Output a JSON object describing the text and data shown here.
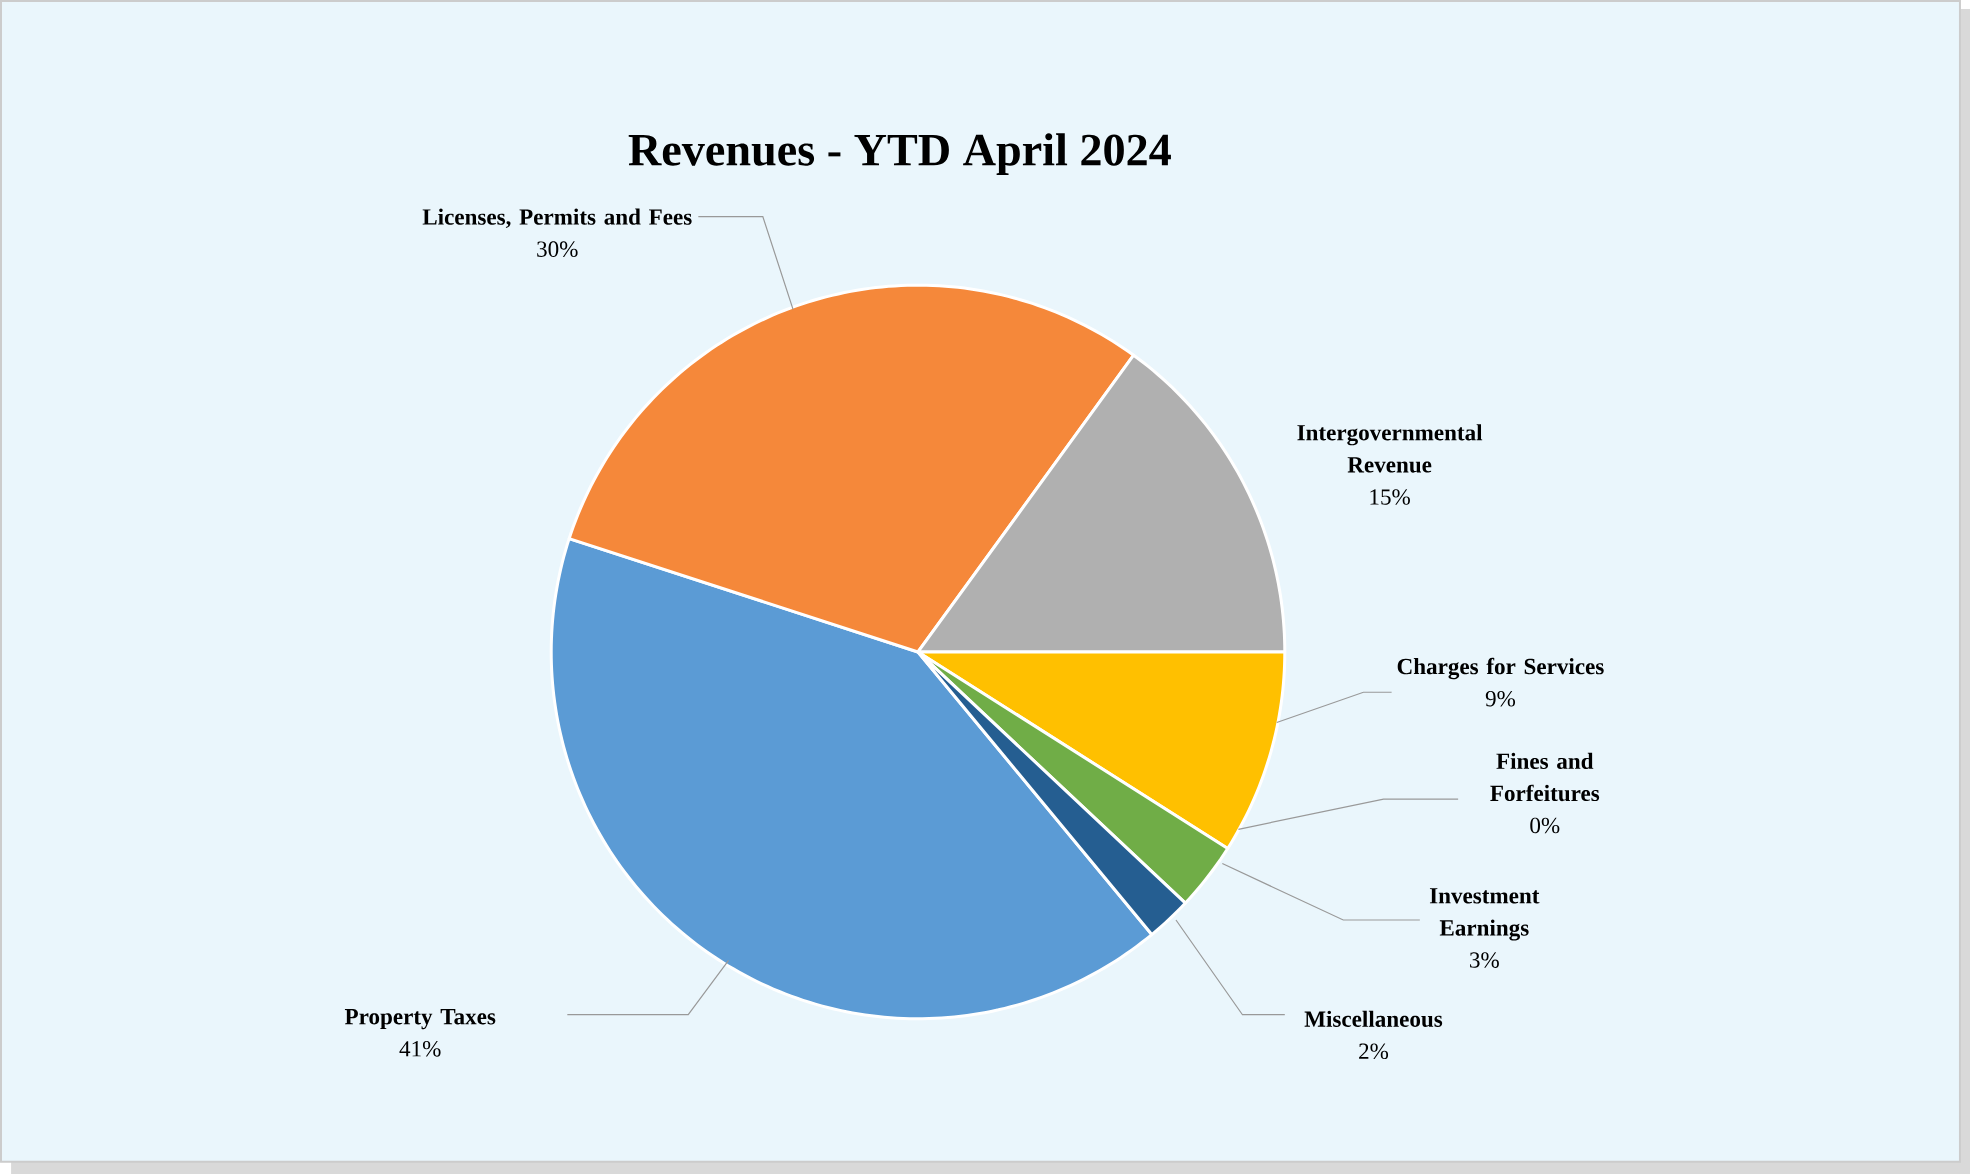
{
  "chart_data": {
    "type": "pie",
    "title": "Revenues  - YTD April 2024",
    "categories": [
      "Property Taxes",
      "Licenses, Permits and Fees",
      "Intergovernmental Revenue",
      "Charges for Services",
      "Fines and Forfeitures",
      "Investment Earnings",
      "Miscellaneous"
    ],
    "values": [
      41,
      30,
      15,
      9,
      0,
      3,
      2
    ],
    "colors": [
      "#5b9bd5",
      "#f5883a",
      "#b0b0b0",
      "#ffc000",
      "#4472c4",
      "#70ad47",
      "#255e91"
    ],
    "value_labels": [
      "41%",
      "30%",
      "15%",
      "9%",
      "0%",
      "3%",
      "2%"
    ]
  }
}
